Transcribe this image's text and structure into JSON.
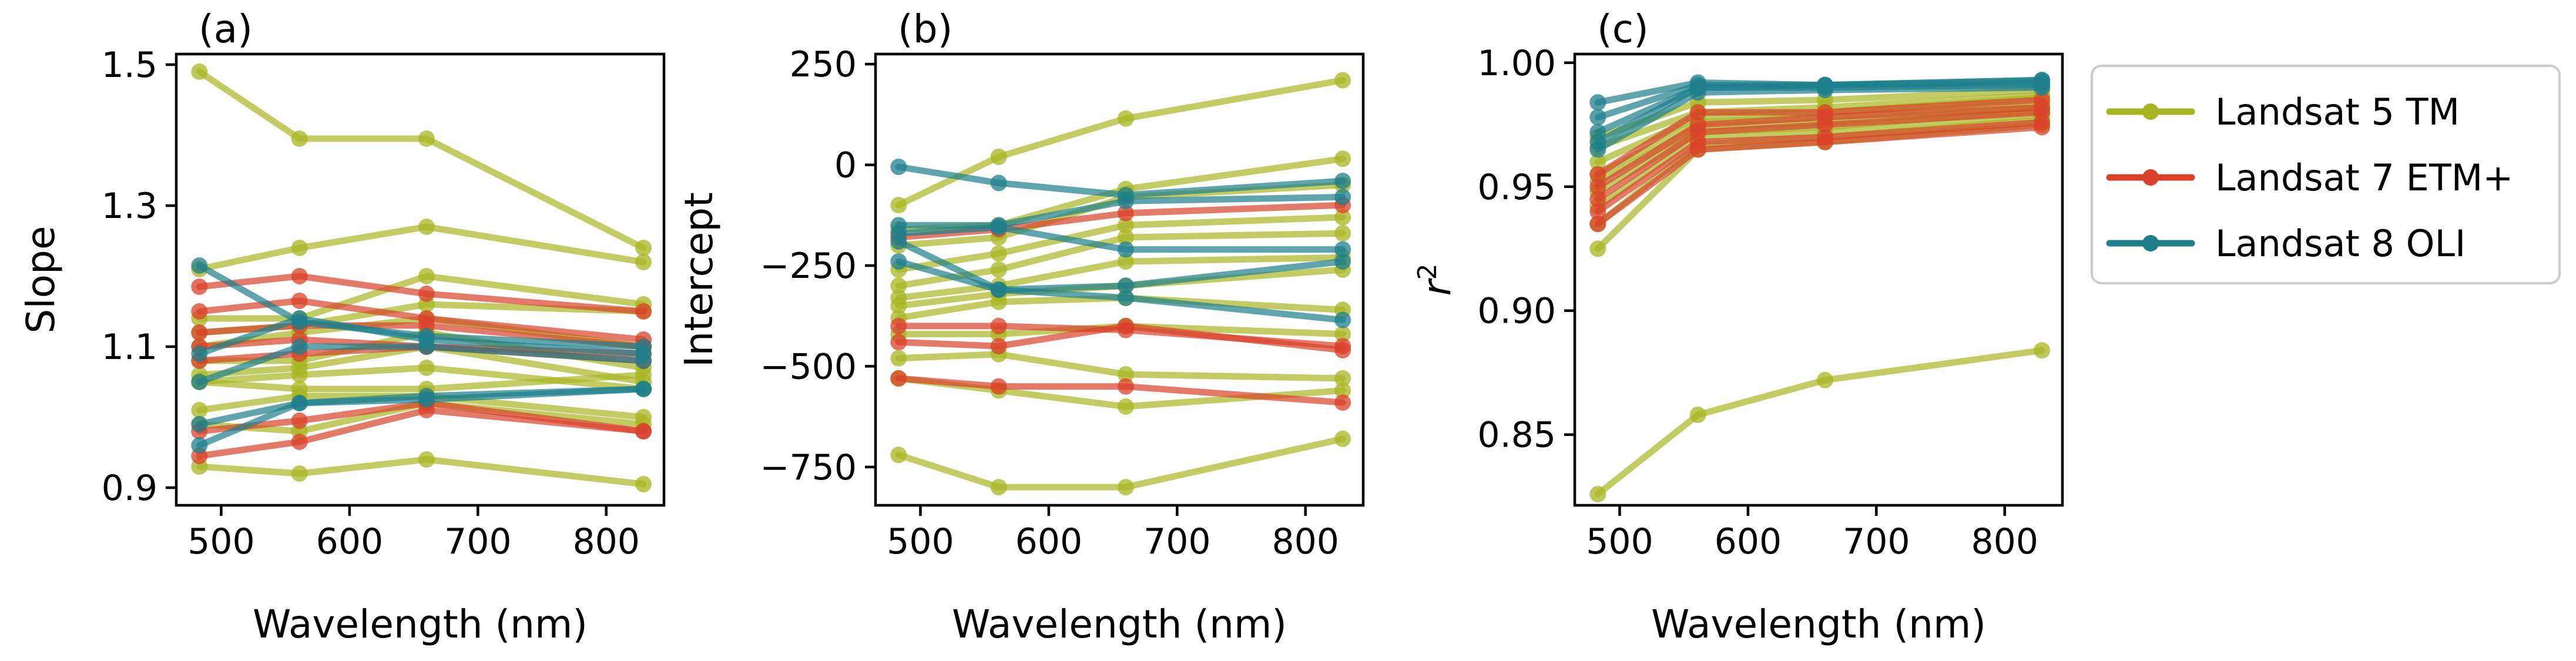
{
  "legend": {
    "entries": [
      {
        "name": "Landsat 5 TM",
        "color": "#a8b522"
      },
      {
        "name": "Landsat 7 ETM+",
        "color": "#d9412a"
      },
      {
        "name": "Landsat 8 OLI",
        "color": "#1d7f8c"
      }
    ]
  },
  "chart_data": [
    {
      "type": "line",
      "panel_label": "(a)",
      "xlabel": "Wavelength (nm)",
      "ylabel": "Slope",
      "xlim": [
        465,
        845
      ],
      "ylim": [
        0.875,
        1.515
      ],
      "xticks": [
        500,
        600,
        700,
        800
      ],
      "yticks": [
        0.9,
        1.1,
        1.3,
        1.5
      ],
      "ytick_labels": [
        "0.9",
        "1.1",
        "1.3",
        "1.5"
      ],
      "x": [
        483,
        561,
        660,
        829
      ],
      "series": [
        {
          "sensor": "Landsat 5 TM",
          "values": [
            1.49,
            1.395,
            1.395,
            1.24
          ]
        },
        {
          "sensor": "Landsat 5 TM",
          "values": [
            1.21,
            1.24,
            1.27,
            1.22
          ]
        },
        {
          "sensor": "Landsat 5 TM",
          "values": [
            1.14,
            1.14,
            1.2,
            1.16
          ]
        },
        {
          "sensor": "Landsat 5 TM",
          "values": [
            1.12,
            1.13,
            1.16,
            1.15
          ]
        },
        {
          "sensor": "Landsat 5 TM",
          "values": [
            1.1,
            1.12,
            1.14,
            1.1
          ]
        },
        {
          "sensor": "Landsat 5 TM",
          "values": [
            1.08,
            1.08,
            1.12,
            1.07
          ]
        },
        {
          "sensor": "Landsat 5 TM",
          "values": [
            1.06,
            1.07,
            1.1,
            1.05
          ]
        },
        {
          "sensor": "Landsat 5 TM",
          "values": [
            1.05,
            1.06,
            1.07,
            1.04
          ]
        },
        {
          "sensor": "Landsat 5 TM",
          "values": [
            1.05,
            1.04,
            1.04,
            1.06
          ]
        },
        {
          "sensor": "Landsat 5 TM",
          "values": [
            1.01,
            1.03,
            1.03,
            1.0
          ]
        },
        {
          "sensor": "Landsat 5 TM",
          "values": [
            0.99,
            0.98,
            1.02,
            0.99
          ]
        },
        {
          "sensor": "Landsat 5 TM",
          "values": [
            0.93,
            0.92,
            0.94,
            0.905
          ]
        },
        {
          "sensor": "Landsat 7 ETM+",
          "values": [
            1.185,
            1.2,
            1.175,
            1.15
          ]
        },
        {
          "sensor": "Landsat 7 ETM+",
          "values": [
            1.15,
            1.165,
            1.14,
            1.11
          ]
        },
        {
          "sensor": "Landsat 7 ETM+",
          "values": [
            1.12,
            1.13,
            1.13,
            1.1
          ]
        },
        {
          "sensor": "Landsat 7 ETM+",
          "values": [
            1.1,
            1.11,
            1.1,
            1.09
          ]
        },
        {
          "sensor": "Landsat 7 ETM+",
          "values": [
            1.08,
            1.09,
            1.1,
            1.08
          ]
        },
        {
          "sensor": "Landsat 7 ETM+",
          "values": [
            0.98,
            0.995,
            1.02,
            0.98
          ]
        },
        {
          "sensor": "Landsat 7 ETM+",
          "values": [
            0.945,
            0.965,
            1.01,
            0.98
          ]
        },
        {
          "sensor": "Landsat 8 OLI",
          "values": [
            1.215,
            1.135,
            1.115,
            1.1
          ]
        },
        {
          "sensor": "Landsat 8 OLI",
          "values": [
            1.09,
            1.14,
            1.11,
            1.09
          ]
        },
        {
          "sensor": "Landsat 8 OLI",
          "values": [
            1.05,
            1.1,
            1.1,
            1.08
          ]
        },
        {
          "sensor": "Landsat 8 OLI",
          "values": [
            0.99,
            1.02,
            1.03,
            1.04
          ]
        },
        {
          "sensor": "Landsat 8 OLI",
          "values": [
            0.96,
            1.02,
            1.025,
            1.04
          ]
        }
      ]
    },
    {
      "type": "line",
      "panel_label": "(b)",
      "xlabel": "Wavelength (nm)",
      "ylabel": "Intercept",
      "xlim": [
        465,
        845
      ],
      "ylim": [
        -845,
        275
      ],
      "xticks": [
        500,
        600,
        700,
        800
      ],
      "yticks": [
        -750,
        -500,
        -250,
        0,
        250
      ],
      "ytick_labels": [
        "−750",
        "−500",
        "−250",
        "0",
        "250"
      ],
      "x": [
        483,
        561,
        660,
        829
      ],
      "series": [
        {
          "sensor": "Landsat 5 TM",
          "values": [
            -100,
            20,
            115,
            210
          ]
        },
        {
          "sensor": "Landsat 5 TM",
          "values": [
            -160,
            -150,
            -60,
            15
          ]
        },
        {
          "sensor": "Landsat 5 TM",
          "values": [
            -200,
            -180,
            -80,
            -50
          ]
        },
        {
          "sensor": "Landsat 5 TM",
          "values": [
            -260,
            -220,
            -150,
            -130
          ]
        },
        {
          "sensor": "Landsat 5 TM",
          "values": [
            -300,
            -260,
            -180,
            -170
          ]
        },
        {
          "sensor": "Landsat 5 TM",
          "values": [
            -330,
            -300,
            -240,
            -230
          ]
        },
        {
          "sensor": "Landsat 5 TM",
          "values": [
            -350,
            -320,
            -300,
            -260
          ]
        },
        {
          "sensor": "Landsat 5 TM",
          "values": [
            -380,
            -340,
            -330,
            -360
          ]
        },
        {
          "sensor": "Landsat 5 TM",
          "values": [
            -420,
            -420,
            -400,
            -420
          ]
        },
        {
          "sensor": "Landsat 5 TM",
          "values": [
            -480,
            -470,
            -520,
            -530
          ]
        },
        {
          "sensor": "Landsat 5 TM",
          "values": [
            -530,
            -560,
            -600,
            -560
          ]
        },
        {
          "sensor": "Landsat 5 TM",
          "values": [
            -720,
            -800,
            -800,
            -680
          ]
        },
        {
          "sensor": "Landsat 7 ETM+",
          "values": [
            -180,
            -160,
            -120,
            -100
          ]
        },
        {
          "sensor": "Landsat 7 ETM+",
          "values": [
            -400,
            -400,
            -410,
            -450
          ]
        },
        {
          "sensor": "Landsat 7 ETM+",
          "values": [
            -440,
            -450,
            -400,
            -460
          ]
        },
        {
          "sensor": "Landsat 7 ETM+",
          "values": [
            -530,
            -550,
            -550,
            -590
          ]
        },
        {
          "sensor": "Landsat 8 OLI",
          "values": [
            -5,
            -45,
            -75,
            -40
          ]
        },
        {
          "sensor": "Landsat 8 OLI",
          "values": [
            -150,
            -150,
            -90,
            -80
          ]
        },
        {
          "sensor": "Landsat 8 OLI",
          "values": [
            -170,
            -155,
            -210,
            -210
          ]
        },
        {
          "sensor": "Landsat 8 OLI",
          "values": [
            -190,
            -310,
            -330,
            -385
          ]
        },
        {
          "sensor": "Landsat 8 OLI",
          "values": [
            -240,
            -310,
            -300,
            -240
          ]
        }
      ]
    },
    {
      "type": "line",
      "panel_label": "(c)",
      "xlabel": "Wavelength (nm)",
      "ylabel": "r²",
      "ylabel_base": "r",
      "ylabel_sup": "2",
      "xlim": [
        465,
        845
      ],
      "ylim": [
        0.8215,
        1.0035
      ],
      "xticks": [
        500,
        600,
        700,
        800
      ],
      "yticks": [
        0.85,
        0.9,
        0.95,
        1.0
      ],
      "ytick_labels": [
        "0.85",
        "0.90",
        "0.95",
        "1.00"
      ],
      "x": [
        483,
        561,
        660,
        829
      ],
      "series": [
        {
          "sensor": "Landsat 5 TM",
          "values": [
            0.826,
            0.858,
            0.872,
            0.884
          ]
        },
        {
          "sensor": "Landsat 5 TM",
          "values": [
            0.925,
            0.965,
            0.968,
            0.975
          ]
        },
        {
          "sensor": "Landsat 5 TM",
          "values": [
            0.935,
            0.967,
            0.97,
            0.977
          ]
        },
        {
          "sensor": "Landsat 5 TM",
          "values": [
            0.942,
            0.97,
            0.972,
            0.979
          ]
        },
        {
          "sensor": "Landsat 5 TM",
          "values": [
            0.948,
            0.972,
            0.974,
            0.981
          ]
        },
        {
          "sensor": "Landsat 5 TM",
          "values": [
            0.952,
            0.974,
            0.976,
            0.982
          ]
        },
        {
          "sensor": "Landsat 5 TM",
          "values": [
            0.955,
            0.976,
            0.978,
            0.984
          ]
        },
        {
          "sensor": "Landsat 5 TM",
          "values": [
            0.96,
            0.978,
            0.98,
            0.986
          ]
        },
        {
          "sensor": "Landsat 5 TM",
          "values": [
            0.966,
            0.98,
            0.982,
            0.987
          ]
        },
        {
          "sensor": "Landsat 5 TM",
          "values": [
            0.97,
            0.984,
            0.985,
            0.989
          ]
        },
        {
          "sensor": "Landsat 7 ETM+",
          "values": [
            0.935,
            0.965,
            0.968,
            0.974
          ]
        },
        {
          "sensor": "Landsat 7 ETM+",
          "values": [
            0.94,
            0.968,
            0.97,
            0.976
          ]
        },
        {
          "sensor": "Landsat 7 ETM+",
          "values": [
            0.945,
            0.972,
            0.975,
            0.98
          ]
        },
        {
          "sensor": "Landsat 7 ETM+",
          "values": [
            0.95,
            0.975,
            0.978,
            0.982
          ]
        },
        {
          "sensor": "Landsat 7 ETM+",
          "values": [
            0.955,
            0.98,
            0.98,
            0.985
          ]
        },
        {
          "sensor": "Landsat 8 OLI",
          "values": [
            0.965,
            0.988,
            0.989,
            0.99
          ]
        },
        {
          "sensor": "Landsat 8 OLI",
          "values": [
            0.968,
            0.99,
            0.99,
            0.991
          ]
        },
        {
          "sensor": "Landsat 8 OLI",
          "values": [
            0.972,
            0.99,
            0.991,
            0.992
          ]
        },
        {
          "sensor": "Landsat 8 OLI",
          "values": [
            0.978,
            0.991,
            0.991,
            0.993
          ]
        },
        {
          "sensor": "Landsat 8 OLI",
          "values": [
            0.984,
            0.992,
            0.991,
            0.993
          ]
        }
      ]
    }
  ]
}
